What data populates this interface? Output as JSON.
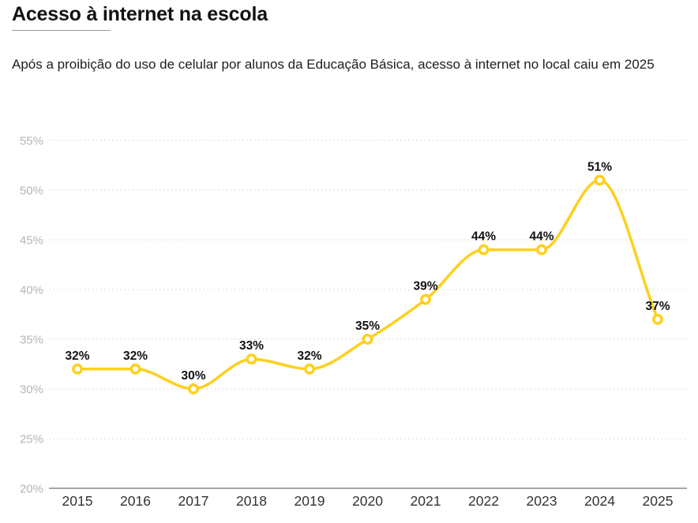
{
  "header": {
    "title": "Acesso à internet na escola",
    "subtitle": "Após a proibição do uso de celular por alunos da Educação Básica, acesso à internet no local caiu em 2025"
  },
  "chart_data": {
    "type": "line",
    "title": "Acesso à internet na escola",
    "subtitle": "Após a proibição do uso de celular por alunos da Educação Básica, acesso à internet no local caiu em 2025",
    "categories": [
      "2015",
      "2016",
      "2017",
      "2018",
      "2019",
      "2020",
      "2021",
      "2022",
      "2023",
      "2024",
      "2025"
    ],
    "values": [
      32,
      32,
      30,
      33,
      32,
      35,
      39,
      44,
      44,
      51,
      37
    ],
    "unit": "%",
    "xlabel": "",
    "ylabel": "",
    "ylim": [
      20,
      55
    ],
    "yticks": [
      "20%",
      "25%",
      "30%",
      "35%",
      "40%",
      "45%",
      "50%",
      "55%"
    ],
    "grid": "dotted-horizontal",
    "legend": false,
    "curve": "smooth-spline",
    "data_labels_visible": true,
    "colors": {
      "line": "#fdd01d",
      "marker_fill": "#ffffff",
      "data_label": "#111111",
      "grid": "#d9d9d9",
      "axis_line": "#a6a6a6",
      "ytick_label": "#b5b5b5",
      "xtick_label": "#333333",
      "background": "#ffffff"
    }
  }
}
